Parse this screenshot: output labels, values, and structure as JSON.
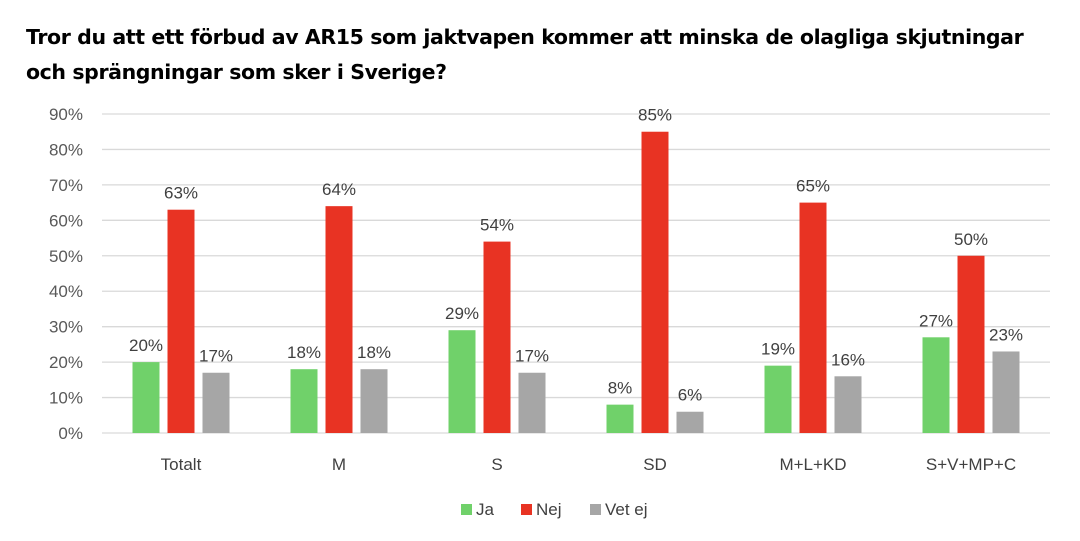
{
  "chart_data": {
    "type": "bar",
    "title": "Tror du att ett förbud av AR15 som jaktvapen kommer att minska de olagliga skjutningar och sprängningar som sker i Sverige?",
    "xlabel": "",
    "ylabel": "",
    "ylim": [
      0,
      90
    ],
    "yticks": [
      0,
      10,
      20,
      30,
      40,
      50,
      60,
      70,
      80,
      90
    ],
    "ytick_labels": [
      "0%",
      "10%",
      "20%",
      "30%",
      "40%",
      "50%",
      "60%",
      "70%",
      "80%",
      "90%"
    ],
    "grid": true,
    "legend_position": "bottom",
    "categories": [
      "Totalt",
      "M",
      "S",
      "SD",
      "M+L+KD",
      "S+V+MP+C"
    ],
    "series": [
      {
        "name": "Ja",
        "color": "#70d16a",
        "values": [
          20,
          18,
          29,
          8,
          19,
          27
        ],
        "labels": [
          "20%",
          "18%",
          "29%",
          "8%",
          "19%",
          "27%"
        ]
      },
      {
        "name": "Nej",
        "color": "#e83323",
        "values": [
          63,
          64,
          54,
          85,
          65,
          50
        ],
        "labels": [
          "63%",
          "64%",
          "54%",
          "85%",
          "65%",
          "50%"
        ]
      },
      {
        "name": "Vet ej",
        "color": "#a6a6a6",
        "values": [
          17,
          18,
          17,
          6,
          16,
          23
        ],
        "labels": [
          "17%",
          "18%",
          "17%",
          "6%",
          "16%",
          "23%"
        ]
      }
    ]
  }
}
